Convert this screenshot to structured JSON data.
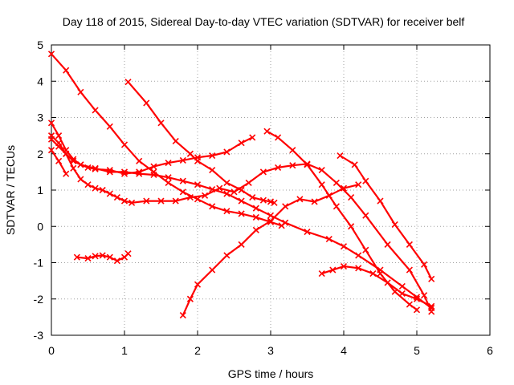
{
  "chart_data": {
    "type": "scatter",
    "title": "Day 118 of 2015, Sidereal Day-to-day VTEC variation (SDTVAR) for receiver belf",
    "xlabel": "GPS time / hours",
    "ylabel": "SDTVAR / TECUs",
    "xlim": [
      0,
      6
    ],
    "ylim": [
      -3,
      5
    ],
    "xticks": [
      "0",
      "1",
      "2",
      "3",
      "4",
      "5",
      "6"
    ],
    "yticks": [
      "-3",
      "-2",
      "-1",
      "0",
      "1",
      "2",
      "3",
      "4",
      "5"
    ],
    "grid": true,
    "color": "#ff0000",
    "marker": "cross",
    "series": [
      {
        "x": [
          0.0,
          0.2,
          0.4,
          0.6,
          0.8,
          1.0,
          1.2,
          1.4,
          1.6,
          1.8,
          2.0,
          2.2,
          2.4,
          2.6,
          2.8,
          3.0,
          3.15
        ],
        "y": [
          4.75,
          4.3,
          3.7,
          3.2,
          2.75,
          2.25,
          1.8,
          1.5,
          1.2,
          0.95,
          0.75,
          0.55,
          0.42,
          0.35,
          0.25,
          0.12,
          0.02
        ]
      },
      {
        "x": [
          1.05,
          1.3,
          1.5,
          1.7,
          1.9,
          2.0,
          2.2,
          2.4,
          2.6,
          2.75,
          2.9,
          3.0,
          3.05
        ],
        "y": [
          3.98,
          3.4,
          2.85,
          2.35,
          2.0,
          1.8,
          1.55,
          1.2,
          1.0,
          0.8,
          0.72,
          0.68,
          0.65
        ]
      },
      {
        "x": [
          0.0,
          0.1,
          0.2,
          0.3,
          0.4,
          0.5,
          0.6,
          0.8,
          1.0,
          1.2,
          1.4,
          1.6,
          1.8,
          2.0,
          2.2,
          2.4,
          2.6,
          2.75
        ],
        "y": [
          2.85,
          2.5,
          2.1,
          1.85,
          1.7,
          1.62,
          1.58,
          1.55,
          1.45,
          1.5,
          1.65,
          1.75,
          1.82,
          1.9,
          1.95,
          2.05,
          2.3,
          2.45
        ]
      },
      {
        "x": [
          0.0,
          0.1,
          0.2,
          0.3,
          0.4,
          0.6,
          0.8,
          1.0,
          1.2,
          1.4,
          1.6,
          1.8,
          2.0,
          2.2,
          2.4,
          2.6,
          2.8,
          3.0,
          3.2,
          3.5,
          3.8,
          4.0,
          4.2,
          4.5,
          4.8,
          5.0,
          5.2
        ],
        "y": [
          2.4,
          2.2,
          2.0,
          1.8,
          1.7,
          1.6,
          1.5,
          1.5,
          1.45,
          1.42,
          1.35,
          1.25,
          1.15,
          1.02,
          0.9,
          0.7,
          0.5,
          0.3,
          0.1,
          -0.15,
          -0.35,
          -0.55,
          -0.8,
          -1.2,
          -1.65,
          -1.95,
          -2.25
        ]
      },
      {
        "x": [
          0.0,
          0.1,
          0.2,
          0.3,
          0.4,
          0.5,
          0.6,
          0.7,
          0.8,
          0.9,
          1.0,
          1.1,
          1.3,
          1.5,
          1.7,
          1.9,
          2.1,
          2.3,
          2.5,
          2.7,
          2.9,
          3.1,
          3.3,
          3.5,
          3.7,
          3.9,
          4.1,
          4.3,
          4.6,
          4.9,
          5.1,
          5.2
        ],
        "y": [
          2.5,
          2.3,
          2.0,
          1.6,
          1.3,
          1.15,
          1.05,
          1.0,
          0.9,
          0.8,
          0.7,
          0.65,
          0.7,
          0.7,
          0.7,
          0.8,
          0.85,
          1.05,
          0.95,
          1.2,
          1.5,
          1.62,
          1.68,
          1.72,
          1.55,
          1.2,
          0.8,
          0.3,
          -0.5,
          -1.2,
          -1.9,
          -2.35
        ]
      },
      {
        "x": [
          0.0,
          0.1,
          0.2
        ],
        "y": [
          2.1,
          1.8,
          1.45
        ]
      },
      {
        "x": [
          0.35,
          0.5,
          0.6,
          0.7,
          0.8,
          0.9,
          1.0,
          1.05
        ],
        "y": [
          -0.85,
          -0.88,
          -0.82,
          -0.8,
          -0.85,
          -0.95,
          -0.85,
          -0.75
        ]
      },
      {
        "x": [
          1.8,
          1.9,
          2.0,
          2.2,
          2.4,
          2.6,
          2.8,
          3.0,
          3.2,
          3.4,
          3.6,
          3.8,
          4.0,
          4.2
        ],
        "y": [
          -2.45,
          -2.0,
          -1.6,
          -1.2,
          -0.8,
          -0.5,
          -0.1,
          0.15,
          0.55,
          0.75,
          0.68,
          0.85,
          1.05,
          1.15
        ]
      },
      {
        "x": [
          3.7,
          3.85,
          4.0,
          4.2,
          4.4,
          4.6,
          4.8,
          5.0,
          5.2
        ],
        "y": [
          -1.3,
          -1.2,
          -1.1,
          -1.15,
          -1.3,
          -1.55,
          -1.85,
          -2.0,
          -2.2
        ]
      },
      {
        "x": [
          3.95,
          4.15,
          4.3,
          4.5,
          4.7,
          4.9,
          5.1,
          5.2
        ],
        "y": [
          1.95,
          1.7,
          1.25,
          0.7,
          0.05,
          -0.5,
          -1.05,
          -1.45
        ]
      },
      {
        "x": [
          2.95,
          3.1,
          3.3,
          3.5,
          3.7,
          3.9,
          4.1,
          4.3,
          4.5,
          4.7,
          4.9,
          5.0
        ],
        "y": [
          2.62,
          2.45,
          2.1,
          1.7,
          1.15,
          0.55,
          0.0,
          -0.65,
          -1.3,
          -1.8,
          -2.15,
          -2.3
        ]
      }
    ]
  }
}
